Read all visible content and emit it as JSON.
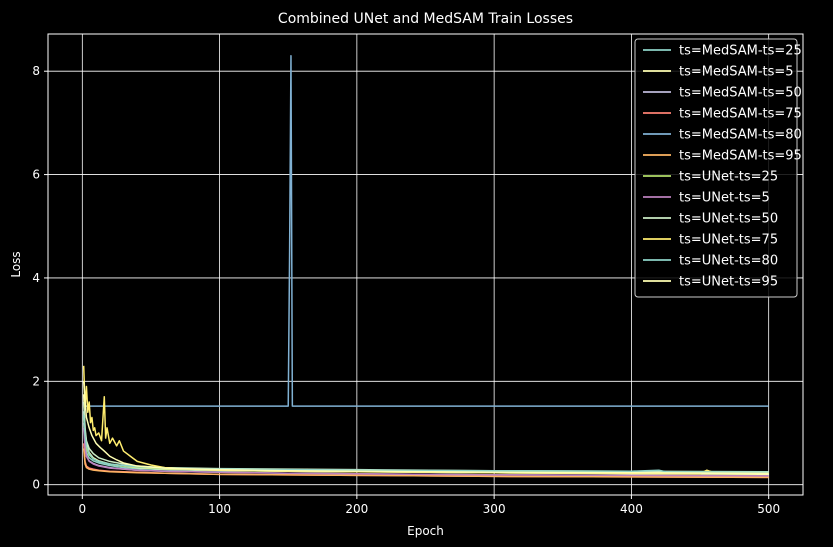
{
  "chart_data": {
    "type": "line",
    "title": "Combined UNet and MedSAM Train Losses",
    "xlabel": "Epoch",
    "ylabel": "Loss",
    "xlim": [
      -25,
      525
    ],
    "ylim": [
      -0.2,
      8.72
    ],
    "xticks": [
      0,
      100,
      200,
      300,
      400,
      500
    ],
    "yticks": [
      0,
      2,
      4,
      6,
      8
    ],
    "grid": true,
    "legend_position": "top-right",
    "background": "#000000",
    "series": [
      {
        "name": "ts=MedSAM-ts=25",
        "color": "#8dd3c7",
        "points": [
          [
            1,
            1.42
          ],
          [
            2,
            0.8
          ],
          [
            3,
            0.62
          ],
          [
            5,
            0.52
          ],
          [
            8,
            0.46
          ],
          [
            12,
            0.42
          ],
          [
            20,
            0.37
          ],
          [
            30,
            0.33
          ],
          [
            40,
            0.31
          ],
          [
            60,
            0.29
          ],
          [
            100,
            0.27
          ],
          [
            150,
            0.26
          ],
          [
            200,
            0.25
          ],
          [
            300,
            0.23
          ],
          [
            400,
            0.22
          ],
          [
            500,
            0.21
          ]
        ]
      },
      {
        "name": "ts=MedSAM-ts=5",
        "color": "#ffffb3",
        "points": [
          [
            1,
            1.75
          ],
          [
            2,
            1.05
          ],
          [
            3,
            0.8
          ],
          [
            5,
            0.62
          ],
          [
            8,
            0.52
          ],
          [
            12,
            0.46
          ],
          [
            20,
            0.4
          ],
          [
            30,
            0.36
          ],
          [
            40,
            0.33
          ],
          [
            60,
            0.3
          ],
          [
            100,
            0.28
          ],
          [
            150,
            0.26
          ],
          [
            200,
            0.25
          ],
          [
            300,
            0.23
          ],
          [
            400,
            0.21
          ],
          [
            500,
            0.2
          ]
        ]
      },
      {
        "name": "ts=MedSAM-ts=50",
        "color": "#bebada",
        "points": [
          [
            1,
            1.2
          ],
          [
            2,
            0.72
          ],
          [
            3,
            0.55
          ],
          [
            5,
            0.46
          ],
          [
            8,
            0.41
          ],
          [
            12,
            0.37
          ],
          [
            20,
            0.33
          ],
          [
            30,
            0.3
          ],
          [
            40,
            0.28
          ],
          [
            60,
            0.26
          ],
          [
            100,
            0.24
          ],
          [
            150,
            0.22
          ],
          [
            200,
            0.21
          ],
          [
            300,
            0.19
          ],
          [
            400,
            0.18
          ],
          [
            500,
            0.17
          ]
        ]
      },
      {
        "name": "ts=MedSAM-ts=75",
        "color": "#fb8072",
        "points": [
          [
            1,
            0.8
          ],
          [
            2,
            0.45
          ],
          [
            3,
            0.36
          ],
          [
            5,
            0.32
          ],
          [
            8,
            0.3
          ],
          [
            12,
            0.28
          ],
          [
            20,
            0.26
          ],
          [
            30,
            0.25
          ],
          [
            40,
            0.24
          ],
          [
            60,
            0.22
          ],
          [
            100,
            0.2
          ],
          [
            150,
            0.19
          ],
          [
            200,
            0.18
          ],
          [
            300,
            0.16
          ],
          [
            400,
            0.15
          ],
          [
            500,
            0.14
          ]
        ]
      },
      {
        "name": "ts=MedSAM-ts=80",
        "color": "#80b1d3",
        "points": [
          [
            1,
            1.52
          ],
          [
            50,
            1.52
          ],
          [
            100,
            1.52
          ],
          [
            150,
            1.52
          ],
          [
            151,
            4.5
          ],
          [
            152,
            8.3
          ],
          [
            153,
            1.52
          ],
          [
            200,
            1.52
          ],
          [
            300,
            1.52
          ],
          [
            400,
            1.52
          ],
          [
            500,
            1.52
          ]
        ]
      },
      {
        "name": "ts=MedSAM-ts=95",
        "color": "#fdb462",
        "points": [
          [
            1,
            0.7
          ],
          [
            2,
            0.4
          ],
          [
            3,
            0.33
          ],
          [
            5,
            0.3
          ],
          [
            8,
            0.28
          ],
          [
            12,
            0.27
          ],
          [
            20,
            0.25
          ],
          [
            30,
            0.24
          ],
          [
            40,
            0.23
          ],
          [
            60,
            0.22
          ],
          [
            100,
            0.2
          ],
          [
            150,
            0.19
          ],
          [
            200,
            0.18
          ],
          [
            300,
            0.16
          ],
          [
            400,
            0.15
          ],
          [
            500,
            0.14
          ]
        ]
      },
      {
        "name": "ts=UNet-ts=25",
        "color": "#b3de69",
        "points": [
          [
            1,
            1.3
          ],
          [
            2,
            0.9
          ],
          [
            3,
            0.7
          ],
          [
            5,
            0.58
          ],
          [
            8,
            0.5
          ],
          [
            12,
            0.45
          ],
          [
            20,
            0.4
          ],
          [
            30,
            0.36
          ],
          [
            40,
            0.34
          ],
          [
            60,
            0.31
          ],
          [
            100,
            0.29
          ],
          [
            150,
            0.28
          ],
          [
            200,
            0.27
          ],
          [
            300,
            0.25
          ],
          [
            400,
            0.24
          ],
          [
            450,
            0.23
          ],
          [
            455,
            0.27
          ],
          [
            460,
            0.24
          ],
          [
            500,
            0.23
          ]
        ]
      },
      {
        "name": "ts=UNet-ts=5",
        "color": "#bc80bd",
        "points": [
          [
            1,
            1.1
          ],
          [
            2,
            0.7
          ],
          [
            3,
            0.55
          ],
          [
            5,
            0.45
          ],
          [
            8,
            0.4
          ],
          [
            12,
            0.36
          ],
          [
            20,
            0.32
          ],
          [
            30,
            0.3
          ],
          [
            40,
            0.28
          ],
          [
            60,
            0.26
          ],
          [
            100,
            0.24
          ],
          [
            150,
            0.22
          ],
          [
            200,
            0.21
          ],
          [
            300,
            0.19
          ],
          [
            400,
            0.18
          ],
          [
            500,
            0.17
          ]
        ]
      },
      {
        "name": "ts=UNet-ts=50",
        "color": "#ccebc5",
        "points": [
          [
            1,
            1.6
          ],
          [
            2,
            1.1
          ],
          [
            3,
            0.85
          ],
          [
            5,
            0.7
          ],
          [
            8,
            0.6
          ],
          [
            12,
            0.52
          ],
          [
            20,
            0.45
          ],
          [
            30,
            0.4
          ],
          [
            40,
            0.36
          ],
          [
            60,
            0.33
          ],
          [
            100,
            0.31
          ],
          [
            150,
            0.3
          ],
          [
            200,
            0.29
          ],
          [
            300,
            0.27
          ],
          [
            400,
            0.26
          ],
          [
            500,
            0.25
          ]
        ]
      },
      {
        "name": "ts=UNet-ts=75",
        "color": "#ffed6f",
        "points": [
          [
            1,
            2.3
          ],
          [
            2,
            1.5
          ],
          [
            3,
            1.9
          ],
          [
            4,
            1.4
          ],
          [
            5,
            1.6
          ],
          [
            6,
            1.2
          ],
          [
            7,
            1.3
          ],
          [
            8,
            1.05
          ],
          [
            9,
            1.1
          ],
          [
            10,
            0.95
          ],
          [
            12,
            1.0
          ],
          [
            14,
            0.85
          ],
          [
            16,
            1.7
          ],
          [
            17,
            0.9
          ],
          [
            18,
            1.1
          ],
          [
            20,
            0.8
          ],
          [
            22,
            0.9
          ],
          [
            25,
            0.75
          ],
          [
            27,
            0.85
          ],
          [
            30,
            0.65
          ],
          [
            35,
            0.55
          ],
          [
            40,
            0.45
          ],
          [
            50,
            0.38
          ],
          [
            60,
            0.33
          ],
          [
            80,
            0.3
          ],
          [
            100,
            0.28
          ],
          [
            150,
            0.26
          ],
          [
            200,
            0.25
          ],
          [
            300,
            0.23
          ],
          [
            400,
            0.22
          ],
          [
            450,
            0.21
          ],
          [
            455,
            0.28
          ],
          [
            460,
            0.23
          ],
          [
            500,
            0.22
          ]
        ]
      },
      {
        "name": "ts=UNet-ts=80",
        "color": "#8dd3c7",
        "points": [
          [
            1,
            1.35
          ],
          [
            2,
            0.95
          ],
          [
            3,
            0.75
          ],
          [
            5,
            0.6
          ],
          [
            8,
            0.5
          ],
          [
            12,
            0.45
          ],
          [
            20,
            0.4
          ],
          [
            30,
            0.37
          ],
          [
            40,
            0.35
          ],
          [
            60,
            0.32
          ],
          [
            100,
            0.3
          ],
          [
            150,
            0.29
          ],
          [
            200,
            0.28
          ],
          [
            300,
            0.27
          ],
          [
            400,
            0.26
          ],
          [
            420,
            0.28
          ],
          [
            425,
            0.25
          ],
          [
            500,
            0.24
          ]
        ]
      },
      {
        "name": "ts=UNet-ts=95",
        "color": "#ffffb3",
        "points": [
          [
            1,
            2.0
          ],
          [
            2,
            1.6
          ],
          [
            3,
            1.3
          ],
          [
            5,
            1.1
          ],
          [
            7,
            0.95
          ],
          [
            10,
            0.8
          ],
          [
            13,
            0.72
          ],
          [
            16,
            0.65
          ],
          [
            20,
            0.55
          ],
          [
            25,
            0.48
          ],
          [
            30,
            0.42
          ],
          [
            40,
            0.36
          ],
          [
            60,
            0.32
          ],
          [
            100,
            0.29
          ],
          [
            150,
            0.27
          ],
          [
            200,
            0.26
          ],
          [
            300,
            0.24
          ],
          [
            400,
            0.23
          ],
          [
            500,
            0.22
          ]
        ]
      }
    ]
  }
}
